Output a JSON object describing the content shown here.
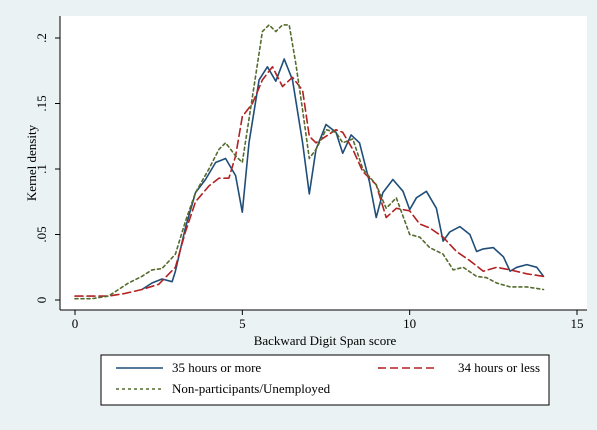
{
  "chart_data": {
    "type": "line",
    "title": "",
    "xlabel": "Backward Digit Span score",
    "ylabel": "Kernel density",
    "xlim": [
      0,
      15
    ],
    "ylim": [
      0,
      0.21
    ],
    "xticks": [
      0,
      5,
      10,
      15
    ],
    "xtick_labels": [
      "0",
      "5",
      "10",
      "15"
    ],
    "yticks": [
      0,
      0.05,
      0.1,
      0.15,
      0.2
    ],
    "ytick_labels": [
      "0",
      ".05",
      ".1",
      ".15",
      ".2"
    ],
    "grid": false,
    "legend_position": "bottom",
    "series": [
      {
        "name": "35 hours or more",
        "color": "#1f4e79",
        "dash": "solid",
        "x": [
          2.0,
          2.3,
          2.6,
          2.9,
          3.0,
          3.3,
          3.6,
          3.9,
          4.2,
          4.5,
          4.8,
          5.0,
          5.2,
          5.5,
          5.75,
          6.0,
          6.25,
          6.5,
          6.8,
          7.0,
          7.2,
          7.5,
          7.8,
          8.0,
          8.25,
          8.5,
          8.8,
          9.0,
          9.2,
          9.5,
          9.8,
          10.0,
          10.2,
          10.5,
          10.8,
          11.0,
          11.2,
          11.5,
          11.8,
          12.0,
          12.2,
          12.5,
          12.8,
          13.0,
          13.2,
          13.5,
          13.8,
          14.0
        ],
        "y": [
          0.008,
          0.013,
          0.016,
          0.014,
          0.022,
          0.055,
          0.082,
          0.092,
          0.105,
          0.108,
          0.095,
          0.067,
          0.12,
          0.168,
          0.178,
          0.167,
          0.184,
          0.168,
          0.12,
          0.081,
          0.115,
          0.134,
          0.128,
          0.112,
          0.126,
          0.12,
          0.09,
          0.063,
          0.082,
          0.092,
          0.083,
          0.069,
          0.078,
          0.083,
          0.07,
          0.045,
          0.052,
          0.056,
          0.05,
          0.037,
          0.039,
          0.04,
          0.033,
          0.022,
          0.025,
          0.027,
          0.025,
          0.018
        ]
      },
      {
        "name": "34 hours or less",
        "color": "#b22222",
        "dash": "8,4",
        "x": [
          0.0,
          0.5,
          1.0,
          1.5,
          2.0,
          2.5,
          3.0,
          3.3,
          3.6,
          4.0,
          4.3,
          4.6,
          4.8,
          5.0,
          5.3,
          5.6,
          5.9,
          6.2,
          6.5,
          6.8,
          7.0,
          7.2,
          7.5,
          7.8,
          8.0,
          8.3,
          8.6,
          9.0,
          9.3,
          9.6,
          10.0,
          10.3,
          10.6,
          11.0,
          11.4,
          11.8,
          12.2,
          12.6,
          13.0,
          13.5,
          14.0
        ],
        "y": [
          0.003,
          0.003,
          0.003,
          0.005,
          0.008,
          0.012,
          0.025,
          0.052,
          0.075,
          0.087,
          0.093,
          0.093,
          0.11,
          0.14,
          0.15,
          0.168,
          0.178,
          0.163,
          0.17,
          0.16,
          0.125,
          0.12,
          0.125,
          0.13,
          0.128,
          0.115,
          0.098,
          0.088,
          0.063,
          0.07,
          0.068,
          0.058,
          0.055,
          0.048,
          0.037,
          0.03,
          0.022,
          0.025,
          0.023,
          0.02,
          0.018
        ]
      },
      {
        "name": "Non-participants/Unemployed",
        "color": "#556b2f",
        "dash": "3,3",
        "x": [
          0.0,
          0.5,
          1.0,
          1.3,
          1.6,
          2.0,
          2.3,
          2.6,
          3.0,
          3.3,
          3.6,
          4.0,
          4.3,
          4.5,
          4.8,
          5.0,
          5.3,
          5.6,
          5.8,
          6.0,
          6.2,
          6.4,
          6.6,
          6.8,
          7.0,
          7.2,
          7.5,
          7.8,
          8.0,
          8.3,
          8.6,
          9.0,
          9.3,
          9.6,
          10.0,
          10.3,
          10.6,
          11.0,
          11.3,
          11.6,
          12.0,
          12.3,
          12.6,
          13.0,
          13.5,
          14.0
        ],
        "y": [
          0.001,
          0.001,
          0.003,
          0.008,
          0.013,
          0.018,
          0.023,
          0.024,
          0.035,
          0.06,
          0.082,
          0.1,
          0.115,
          0.12,
          0.11,
          0.105,
          0.155,
          0.205,
          0.21,
          0.205,
          0.21,
          0.21,
          0.18,
          0.145,
          0.108,
          0.115,
          0.13,
          0.128,
          0.12,
          0.123,
          0.1,
          0.088,
          0.07,
          0.078,
          0.05,
          0.048,
          0.04,
          0.035,
          0.023,
          0.025,
          0.018,
          0.017,
          0.013,
          0.01,
          0.01,
          0.008
        ]
      }
    ]
  }
}
